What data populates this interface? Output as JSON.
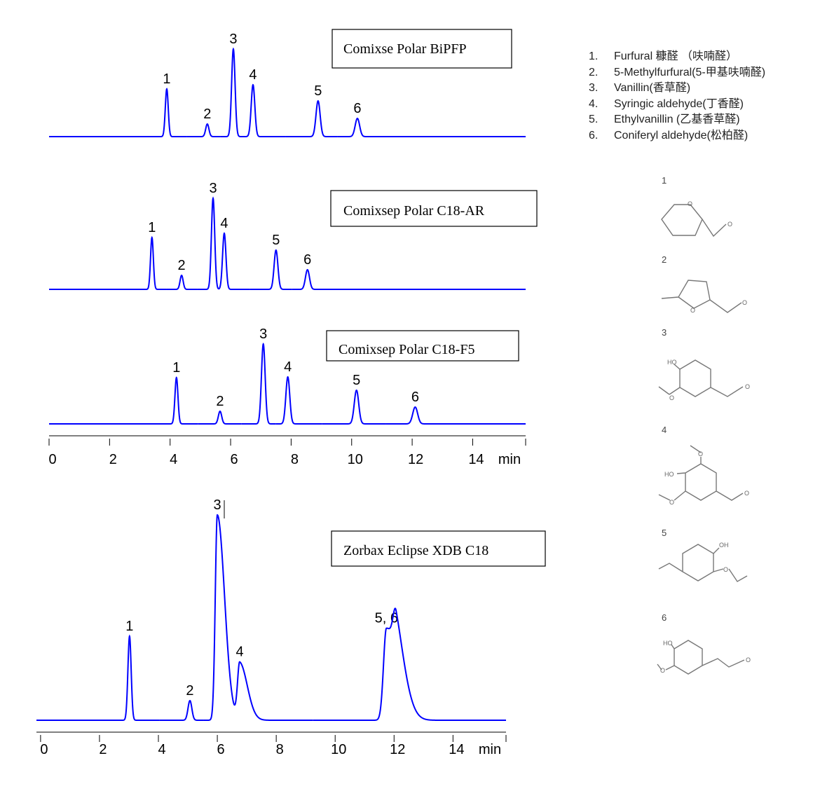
{
  "chart_data": [
    {
      "type": "line",
      "title": "Comixse Polar BiPFP",
      "color": "#0000ff",
      "x": [
        3.89,
        5.23,
        6.09,
        6.74,
        8.89,
        10.19
      ],
      "values": [
        68,
        18,
        125,
        74,
        51,
        26
      ],
      "labels": [
        "1",
        "2",
        "3",
        "4",
        "5",
        "6"
      ],
      "xlim": [
        0,
        15.75
      ]
    },
    {
      "type": "line",
      "title": "Comixsep Polar C18-AR",
      "color": "#0000ff",
      "x": [
        3.4,
        4.38,
        5.42,
        5.79,
        7.5,
        8.54
      ],
      "values": [
        74,
        20,
        130,
        80,
        56,
        28
      ],
      "labels": [
        "1",
        "2",
        "3",
        "4",
        "5",
        "6"
      ],
      "xlim": [
        0,
        15.75
      ]
    },
    {
      "type": "line",
      "title": "Comixsep Polar C18-F5",
      "color": "#0000ff",
      "x": [
        4.21,
        5.65,
        7.08,
        7.89,
        10.16,
        12.1
      ],
      "values": [
        66,
        18,
        114,
        67,
        48,
        24
      ],
      "labels": [
        "1",
        "2",
        "3",
        "4",
        "5",
        "6"
      ],
      "xlim": [
        0,
        15.75
      ],
      "xticks": [
        0,
        2,
        4,
        6,
        8,
        10,
        12,
        14
      ],
      "x_label": "min"
    },
    {
      "type": "line",
      "title": "Zorbax Eclipse XDB C18",
      "color": "#0000ff",
      "x": [
        3.02,
        5.07,
        6.0,
        6.76,
        11.74,
        12.07
      ],
      "values": [
        120,
        28,
        293,
        81,
        131,
        73
      ],
      "labels": [
        "1",
        "2",
        "3",
        "4",
        "5, 6",
        null
      ],
      "xlim": [
        -0.14,
        15.8
      ],
      "xticks": [
        0,
        2,
        4,
        6,
        8,
        10,
        12,
        14
      ],
      "x_label": "min"
    }
  ],
  "legend": {
    "items": [
      {
        "number": "1.",
        "name": "Furfural 糠醛 （呋喃醛）"
      },
      {
        "number": "2.",
        "name": "5-Methylfurfural(5-甲基呋喃醛)"
      },
      {
        "number": "3.",
        "name": "Vanillin(香草醛)"
      },
      {
        "number": "4.",
        "name": "Syringic aldehyde(丁香醛)"
      },
      {
        "number": "5.",
        "name": "Ethylvanillin (乙基香草醛)"
      },
      {
        "number": "6.",
        "name": "Coniferyl aldehyde(松柏醛)"
      }
    ]
  },
  "structures": [
    {
      "number": "1",
      "atoms": [
        "O",
        "O"
      ]
    },
    {
      "number": "2",
      "atoms": [
        "O",
        "O"
      ]
    },
    {
      "number": "3",
      "atoms": [
        "HO",
        "O",
        "O"
      ]
    },
    {
      "number": "4",
      "atoms": [
        "O",
        "HO",
        "O",
        "O"
      ]
    },
    {
      "number": "5",
      "atoms": [
        "OH",
        "O"
      ]
    },
    {
      "number": "6",
      "atoms": [
        "HO",
        "O",
        "O"
      ]
    }
  ]
}
